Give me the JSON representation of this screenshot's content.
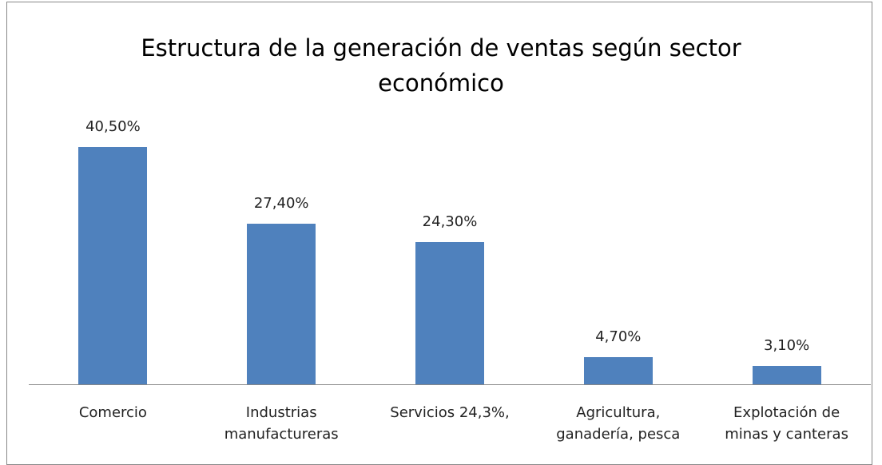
{
  "chart_data": {
    "type": "bar",
    "title": "Estructura de la generación de ventas según sector económico",
    "categories": [
      "Comercio",
      "Industrias manufactureras",
      "Servicios 24,3%,",
      "Agricultura, ganadería, pesca",
      "Explotación de minas y canteras"
    ],
    "values": [
      40.5,
      27.4,
      24.3,
      4.7,
      3.1
    ],
    "value_labels": [
      "40,50%",
      "27,40%",
      "24,30%",
      "4,70%",
      "3,10%"
    ],
    "color": "#4f81bd"
  }
}
